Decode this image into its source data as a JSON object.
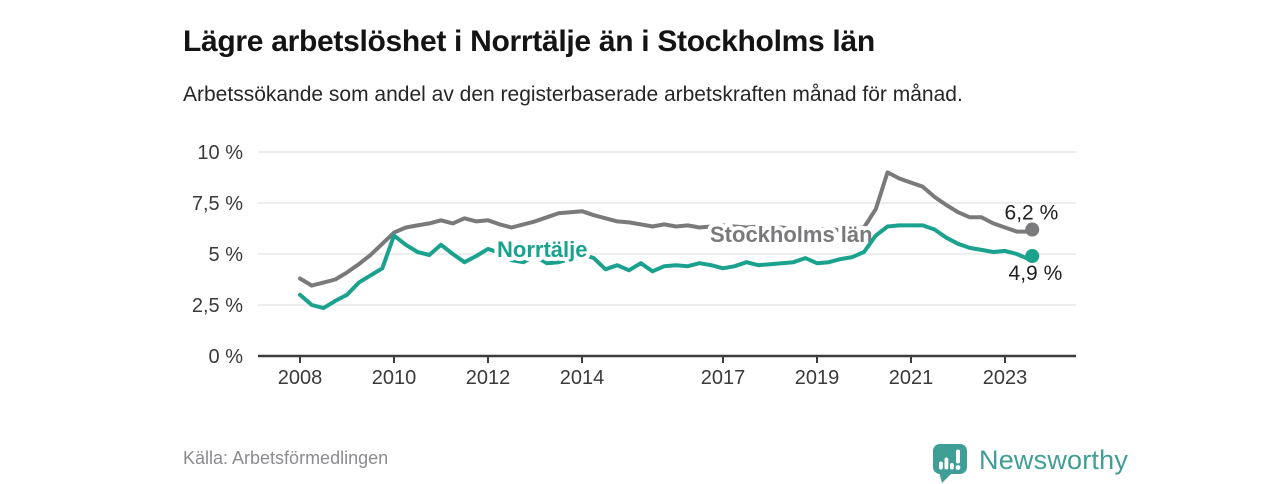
{
  "chart_data": {
    "type": "line",
    "title": "Lägre arbetslöshet i Norrtälje än i Stockholms län",
    "subtitle": "Arbetssökande som andel av den registerbaserade arbetskraften månad för månad.",
    "source": "Källa: Arbetsförmedlingen",
    "brand": "Newsworthy",
    "y_unit": "%",
    "ylim": [
      0,
      10
    ],
    "xlim": [
      2008,
      2024.5
    ],
    "grid": "horizontal",
    "legend_position": "inline-labels",
    "y_ticks": [
      {
        "value": 0,
        "label": "0 %"
      },
      {
        "value": 2.5,
        "label": "2,5 %"
      },
      {
        "value": 5,
        "label": "5 %"
      },
      {
        "value": 7.5,
        "label": "7,5 %"
      },
      {
        "value": 10,
        "label": "10 %"
      }
    ],
    "x_ticks": [
      {
        "value": 2008,
        "label": "2008"
      },
      {
        "value": 2010,
        "label": "2010"
      },
      {
        "value": 2012,
        "label": "2012"
      },
      {
        "value": 2014,
        "label": "2014"
      },
      {
        "value": 2017,
        "label": "2017"
      },
      {
        "value": 2019,
        "label": "2019"
      },
      {
        "value": 2021,
        "label": "2021"
      },
      {
        "value": 2023,
        "label": "2023"
      }
    ],
    "x": [
      2008,
      2008.25,
      2008.5,
      2008.75,
      2009,
      2009.25,
      2009.5,
      2009.75,
      2010,
      2010.25,
      2010.5,
      2010.75,
      2011,
      2011.25,
      2011.5,
      2011.75,
      2012,
      2012.25,
      2012.5,
      2012.75,
      2013,
      2013.25,
      2013.5,
      2013.75,
      2014,
      2014.25,
      2014.5,
      2014.75,
      2015,
      2015.25,
      2015.5,
      2015.75,
      2016,
      2016.25,
      2016.5,
      2016.75,
      2017,
      2017.25,
      2017.5,
      2017.75,
      2018,
      2018.25,
      2018.5,
      2018.75,
      2019,
      2019.25,
      2019.5,
      2019.75,
      2020,
      2020.25,
      2020.5,
      2020.75,
      2021,
      2021.25,
      2021.5,
      2021.75,
      2022,
      2022.25,
      2022.5,
      2022.75,
      2023,
      2023.25,
      2023.5,
      2023.58
    ],
    "series": [
      {
        "id": "stockholms-lan",
        "name": "Stockholms län",
        "color": "#7a7a7c",
        "end_label": "6,2 %",
        "end_value": 6.2,
        "values": [
          3.8,
          3.45,
          3.6,
          3.75,
          4.1,
          4.5,
          4.95,
          5.5,
          6.05,
          6.3,
          6.4,
          6.5,
          6.65,
          6.5,
          6.75,
          6.6,
          6.65,
          6.45,
          6.3,
          6.45,
          6.6,
          6.8,
          7.0,
          7.05,
          7.1,
          6.9,
          6.75,
          6.6,
          6.55,
          6.45,
          6.35,
          6.45,
          6.35,
          6.4,
          6.3,
          6.35,
          6.4,
          6.35,
          6.3,
          6.35,
          6.25,
          6.3,
          6.2,
          6.25,
          6.2,
          6.25,
          6.15,
          6.25,
          6.3,
          7.2,
          9.0,
          8.7,
          8.5,
          8.3,
          7.8,
          7.4,
          7.05,
          6.8,
          6.8,
          6.5,
          6.3,
          6.1,
          6.1,
          6.2
        ]
      },
      {
        "id": "norrtalje",
        "name": "Norrtälje",
        "color": "#1aa28e",
        "end_label": "4,9 %",
        "end_value": 4.9,
        "values": [
          3.0,
          2.5,
          2.35,
          2.7,
          3.0,
          3.6,
          3.95,
          4.3,
          5.9,
          5.45,
          5.1,
          4.95,
          5.45,
          5.0,
          4.6,
          4.9,
          5.25,
          5.05,
          4.7,
          4.6,
          4.9,
          4.55,
          4.6,
          4.75,
          5.0,
          4.8,
          4.25,
          4.45,
          4.2,
          4.55,
          4.15,
          4.4,
          4.45,
          4.4,
          4.55,
          4.45,
          4.3,
          4.4,
          4.6,
          4.45,
          4.5,
          4.55,
          4.6,
          4.8,
          4.55,
          4.6,
          4.75,
          4.85,
          5.1,
          5.9,
          6.35,
          6.4,
          6.4,
          6.4,
          6.2,
          5.8,
          5.5,
          5.3,
          5.2,
          5.1,
          5.15,
          5.0,
          4.75,
          4.9
        ]
      }
    ]
  },
  "colors": {
    "accent_teal": "#1aa28e",
    "line_gray": "#7a7a7c",
    "gridline": "#e4e4e4",
    "axis": "#3d3d3d",
    "tick_text": "#3a3a3a",
    "logo_teal": "#3f9e96"
  }
}
